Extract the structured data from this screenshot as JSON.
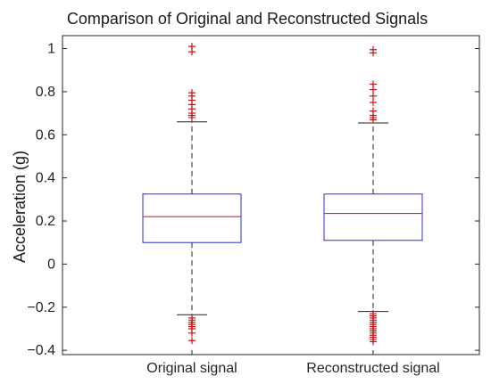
{
  "chart_data": {
    "type": "box",
    "title": "Comparison of Original and Reconstructed Signals",
    "xlabel": "",
    "ylabel": "Acceleration (g)",
    "ylim": [
      -0.42,
      1.06
    ],
    "yticks": [
      -0.4,
      -0.2,
      0,
      0.2,
      0.4,
      0.6,
      0.8,
      1
    ],
    "ytick_labels": [
      "−0.4",
      "−0.2",
      "0",
      "0.2",
      "0.4",
      "0.6",
      "0.8",
      "1"
    ],
    "categories": [
      "Original signal",
      "Reconstructed signal"
    ],
    "grid": false,
    "colors": {
      "box": "#2b2bd6",
      "median": "#e0203a",
      "outlier": "#cc1414",
      "whisker": "#222222"
    },
    "boxes": [
      {
        "category": "Original signal",
        "q1": 0.1,
        "median": 0.22,
        "q3": 0.325,
        "whisker_low": -0.235,
        "whisker_high": 0.66,
        "outliers": [
          1.01,
          0.985,
          0.795,
          0.78,
          0.76,
          0.74,
          0.72,
          0.7,
          0.69,
          0.68,
          -0.25,
          -0.26,
          -0.27,
          -0.28,
          -0.29,
          -0.3,
          -0.32,
          -0.355
        ]
      },
      {
        "category": "Reconstructed signal",
        "q1": 0.11,
        "median": 0.235,
        "q3": 0.325,
        "whisker_low": -0.22,
        "whisker_high": 0.655,
        "outliers": [
          0.995,
          0.98,
          0.835,
          0.81,
          0.78,
          0.75,
          0.71,
          0.69,
          0.68,
          0.67,
          -0.23,
          -0.24,
          -0.25,
          -0.26,
          -0.27,
          -0.28,
          -0.29,
          -0.3,
          -0.31,
          -0.32,
          -0.33,
          -0.34,
          -0.35,
          -0.36
        ]
      }
    ]
  }
}
